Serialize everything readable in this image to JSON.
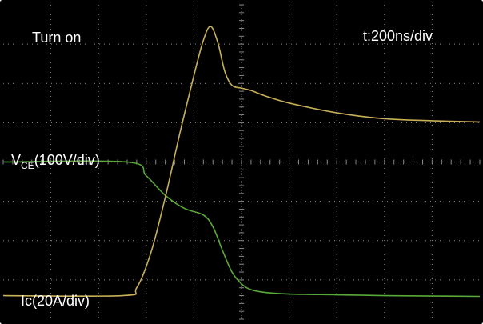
{
  "labels": {
    "title": "Turn on",
    "timebase": "t:200ns/div",
    "vce_main": "V",
    "vce_sub": "CE",
    "vce_scale": "(100V/div)",
    "ic": "Ic(20A/div)"
  },
  "colors": {
    "background": "#000000",
    "grid": "#8a8a8a",
    "vce_trace": "#5aa83a",
    "ic_trace": "#c8b058",
    "text": "#ffffff"
  },
  "chart_data": {
    "type": "line",
    "xlim": [
      0,
      2000
    ],
    "ylim": [
      -4,
      4
    ],
    "x_unit": "ns",
    "grid": true,
    "series": [
      {
        "name": "VCE(100V/div)",
        "x": [
          0,
          520,
          600,
          680,
          760,
          840,
          880,
          920,
          960,
          1000,
          1040,
          1100,
          1200,
          1400,
          1600,
          1800,
          2000
        ],
        "y": [
          0.0,
          0.0,
          -0.35,
          -0.85,
          -1.18,
          -1.35,
          -1.65,
          -2.25,
          -2.8,
          -3.1,
          -3.25,
          -3.32,
          -3.36,
          -3.38,
          -3.4,
          -3.41,
          -3.42
        ]
      },
      {
        "name": "Ic(20A/div)",
        "x": [
          0,
          500,
          560,
          620,
          680,
          740,
          800,
          840,
          870,
          900,
          930,
          960,
          1000,
          1040,
          1100,
          1200,
          1400,
          1600,
          1800,
          2000
        ],
        "y": [
          -3.4,
          -3.4,
          -3.2,
          -2.3,
          -0.9,
          0.7,
          2.2,
          3.1,
          3.45,
          3.05,
          2.3,
          1.95,
          1.88,
          1.82,
          1.68,
          1.5,
          1.25,
          1.1,
          1.05,
          1.02
        ]
      }
    ]
  }
}
